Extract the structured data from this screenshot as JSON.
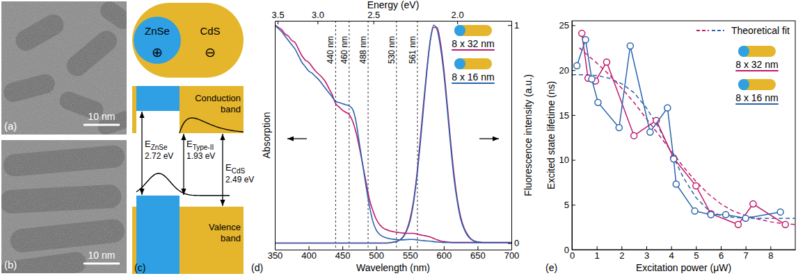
{
  "images": [
    {
      "label": "(a)",
      "scale_bar": "10 nm"
    },
    {
      "label": "(b)",
      "scale_bar": "10 nm"
    }
  ],
  "diagram": {
    "label": "(c)",
    "core": {
      "label": "ZnSe",
      "charge": "⊕"
    },
    "shell": {
      "label": "CdS",
      "charge": "⊖"
    },
    "conduction": "Conduction band",
    "valence": "Valence band",
    "gaps": [
      {
        "symbol": "E",
        "subscript": "ZnSe",
        "value": "2.72 eV"
      },
      {
        "symbol": "E",
        "subscript": "Type-II",
        "value": "1.93 eV"
      },
      {
        "symbol": "E",
        "subscript": "CdS",
        "value": "2.49 eV"
      }
    ]
  },
  "chart_data": [
    {
      "type": "line",
      "label": "(d)",
      "x_label": "Wavelength (nm)",
      "x2_label": "Energy (eV)",
      "y_label": "Absorption",
      "y2_label": "Fluorescence intensity (a.u.)",
      "x": [
        350,
        355,
        360,
        365,
        370,
        375,
        380,
        385,
        390,
        395,
        400,
        405,
        410,
        415,
        420,
        425,
        430,
        435,
        440,
        445,
        450,
        455,
        460,
        465,
        470,
        475,
        480,
        485,
        490,
        495,
        500,
        505,
        510,
        515,
        520,
        525,
        530,
        535,
        540,
        545,
        550,
        555,
        560,
        565,
        570,
        575,
        580,
        585,
        590,
        595,
        600,
        605,
        610,
        615,
        620,
        625,
        630,
        635,
        640,
        645,
        650,
        655,
        660,
        665,
        670,
        675,
        680,
        685,
        690,
        695,
        700
      ],
      "xlim": [
        350,
        700
      ],
      "xticks": [
        350,
        400,
        450,
        500,
        550,
        600,
        650,
        700
      ],
      "x2lim": [
        3.542,
        1.771
      ],
      "x2ticks": [
        3.5,
        {
          "value": 3.0,
          "label": "3.0"
        },
        2.5,
        {
          "value": 2.0,
          "label": "2.0"
        }
      ],
      "ylim": [
        -0.03,
        1.02
      ],
      "yticks": [],
      "y2lim": [
        -0.03,
        1.02
      ],
      "y2ticks": [
        0,
        1
      ],
      "series": [
        {
          "name": "8 x 32 nm",
          "color": "#c0176a",
          "values": [
            1.0,
            0.99,
            0.98,
            0.96,
            0.95,
            0.93,
            0.92,
            0.89,
            0.86,
            0.84,
            0.83,
            0.81,
            0.79,
            0.775,
            0.76,
            0.74,
            0.71,
            0.68,
            0.64,
            0.625,
            0.61,
            0.6,
            0.59,
            0.56,
            0.51,
            0.44,
            0.36,
            0.28,
            0.2,
            0.15,
            0.11,
            0.085,
            0.07,
            0.062,
            0.056,
            0.053,
            0.05,
            0.048,
            0.046,
            0.045,
            0.045,
            0.045,
            0.042,
            0.038,
            0.035,
            0.032,
            0.028,
            0.022,
            0.015,
            0.01,
            0.007,
            0.005,
            0.004,
            0.003,
            0.003,
            0.003,
            0.003,
            0.003,
            0.003,
            0.003,
            0.003,
            0.003,
            0.003,
            0.003,
            0.003,
            0.003,
            0.003,
            0.003,
            0.003,
            0.003,
            0.003
          ]
        },
        {
          "name": "8 x 16 nm",
          "color": "#2a63ad",
          "values": [
            1.0,
            0.985,
            0.97,
            0.95,
            0.93,
            0.91,
            0.89,
            0.86,
            0.83,
            0.81,
            0.79,
            0.78,
            0.765,
            0.75,
            0.73,
            0.71,
            0.69,
            0.67,
            0.65,
            0.645,
            0.64,
            0.635,
            0.63,
            0.615,
            0.56,
            0.46,
            0.36,
            0.26,
            0.17,
            0.1,
            0.06,
            0.04,
            0.03,
            0.024,
            0.02,
            0.018,
            0.016,
            0.015,
            0.015,
            0.016,
            0.017,
            0.017,
            0.015,
            0.013,
            0.011,
            0.01,
            0.009,
            0.007,
            0.005,
            0.004,
            0.003,
            0.003,
            0.002,
            0.002,
            0.002,
            0.002,
            0.002,
            0.002,
            0.002,
            0.002,
            0.002,
            0.002,
            0.002,
            0.002,
            0.002,
            0.002,
            0.002,
            0.002,
            0.002,
            0.002,
            0.002
          ]
        },
        {
          "name": "8 x 32 nm",
          "color": "#c0176a",
          "axis": "y2",
          "values": [
            0,
            0,
            0,
            0,
            0,
            0,
            0,
            0,
            0,
            0,
            0,
            0,
            0,
            0,
            0,
            0,
            0,
            0,
            0,
            0,
            0,
            0,
            0,
            0,
            0,
            0,
            0,
            0,
            0,
            0,
            0,
            0,
            0,
            0,
            0.002,
            0.004,
            0.008,
            0.015,
            0.03,
            0.06,
            0.11,
            0.19,
            0.31,
            0.47,
            0.64,
            0.8,
            0.93,
            0.99,
            0.99,
            0.92,
            0.8,
            0.64,
            0.47,
            0.32,
            0.2,
            0.12,
            0.07,
            0.04,
            0.02,
            0.01,
            0.006,
            0.003,
            0.002,
            0.001,
            0.001,
            0.001,
            0.001,
            0.001,
            0.001,
            0.001,
            0.001
          ]
        },
        {
          "name": "8 x 16 nm",
          "color": "#2a63ad",
          "axis": "y2",
          "values": [
            0,
            0,
            0,
            0,
            0,
            0,
            0,
            0,
            0,
            0,
            0,
            0,
            0,
            0,
            0,
            0,
            0,
            0,
            0,
            0,
            0,
            0,
            0,
            0,
            0,
            0,
            0,
            0,
            0,
            0,
            0,
            0,
            0,
            0,
            0.002,
            0.004,
            0.007,
            0.014,
            0.028,
            0.055,
            0.1,
            0.18,
            0.3,
            0.45,
            0.62,
            0.79,
            0.93,
            1.0,
            0.98,
            0.9,
            0.78,
            0.62,
            0.45,
            0.3,
            0.19,
            0.11,
            0.065,
            0.035,
            0.018,
            0.009,
            0.005,
            0.003,
            0.002,
            0.001,
            0.001,
            0.001,
            0.001,
            0.001,
            0.001,
            0.001,
            0.001
          ]
        }
      ],
      "annotations": [
        {
          "x": 440,
          "label": "440 nm"
        },
        {
          "x": 460,
          "label": "460 nm"
        },
        {
          "x": 488,
          "label": "488 nm"
        },
        {
          "x": 530,
          "label": "530 nm"
        },
        {
          "x": 561,
          "label": "561 nm"
        }
      ],
      "legend": "top-right"
    },
    {
      "type": "scatter",
      "label": "(e)",
      "x_label": "Excitation power (μW)",
      "y_label": "Excited state lifetime (ns)",
      "xlim": [
        0,
        9
      ],
      "xticks": [
        0,
        1,
        2,
        3,
        4,
        5,
        6,
        7,
        8
      ],
      "ylim": [
        0,
        25.5
      ],
      "yticks": [
        0,
        5,
        10,
        15,
        20,
        25
      ],
      "series": [
        {
          "name": "Theoretical fit",
          "color": "#c0176a",
          "line_style": "dashed",
          "marker": "none",
          "x": [
            0.3,
            0.5,
            1,
            1.5,
            2,
            2.5,
            3,
            3.5,
            4,
            4.5,
            5,
            5.5,
            6,
            6.5,
            7,
            7.5,
            8,
            8.5,
            9
          ],
          "values": [
            22.5,
            22.0,
            20.8,
            19.5,
            18.0,
            16.4,
            14.6,
            12.8,
            11.0,
            9.2,
            7.6,
            6.2,
            5.1,
            4.3,
            3.8,
            3.4,
            3.1,
            2.9,
            2.8
          ]
        },
        {
          "name": "Theoretical fit",
          "color": "#2a63ad",
          "line_style": "dashed",
          "marker": "none",
          "x": [
            0,
            0.5,
            1,
            1.5,
            2,
            2.5,
            3,
            3.5,
            4,
            4.5,
            5,
            5.5,
            6,
            6.5,
            7,
            7.5,
            8,
            8.5,
            9
          ],
          "values": [
            19.5,
            19.5,
            19.4,
            19.1,
            18.5,
            17.5,
            15.8,
            13.6,
            10.8,
            8.0,
            5.8,
            4.4,
            3.8,
            3.6,
            3.5,
            3.5,
            3.5,
            3.5,
            3.5
          ]
        },
        {
          "name": "8 x 32 nm",
          "color": "#c0176a",
          "line_style": "solid",
          "marker": "circle",
          "x": [
            0.4,
            0.65,
            0.95,
            1.4,
            2.5,
            3.4,
            4.1,
            5.0,
            5.6,
            6.7,
            7.3,
            8.6
          ],
          "values": [
            24.1,
            19.1,
            18.8,
            20.9,
            12.7,
            14.4,
            10.2,
            7.1,
            4.0,
            2.8,
            5.1,
            2.8
          ]
        },
        {
          "name": "8 x 16 nm",
          "color": "#2a63ad",
          "line_style": "solid",
          "marker": "circle",
          "x": [
            0.2,
            0.55,
            0.8,
            1.05,
            1.9,
            2.35,
            3.15,
            3.85,
            4.1,
            4.2,
            4.95,
            5.6,
            6.2,
            7.0,
            8.4
          ],
          "values": [
            20.5,
            23.4,
            19.0,
            16.4,
            13.6,
            22.7,
            13.1,
            15.8,
            10.1,
            7.3,
            4.3,
            3.9,
            3.9,
            3.5,
            4.2
          ]
        }
      ],
      "legend": "top-right"
    }
  ]
}
